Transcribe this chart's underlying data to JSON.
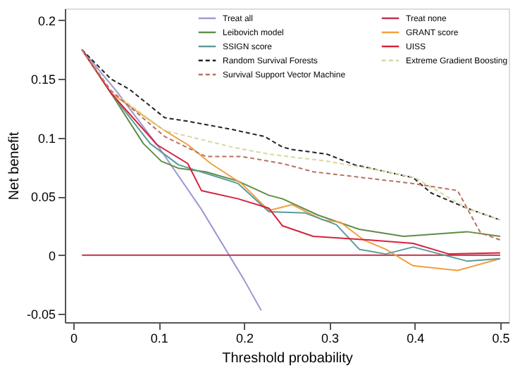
{
  "chart_data": {
    "type": "line",
    "xlabel": "Threshold probability",
    "ylabel": "Net benefit",
    "xlim": [
      -0.01,
      0.51
    ],
    "ylim": [
      -0.057,
      0.21
    ],
    "xticks": [
      0,
      0.1,
      0.2,
      0.3,
      0.4,
      0.5
    ],
    "yticks": [
      -0.05,
      0,
      0.05,
      0.1,
      0.15,
      0.2
    ],
    "grid": false,
    "legend": "top right",
    "line_style": "solid",
    "marker": "none",
    "series": [
      {
        "name": "Treat all",
        "color": "#9a9ad0",
        "x": [
          0.01,
          0.05,
          0.1,
          0.15,
          0.2,
          0.22
        ],
        "values": [
          0.175,
          0.14,
          0.092,
          0.039,
          -0.021,
          -0.047
        ]
      },
      {
        "name": "Treat none",
        "color": "#c0304a",
        "x": [
          0.01,
          0.5
        ],
        "values": [
          0,
          0
        ]
      },
      {
        "name": "Leibovich model",
        "color": "#5f8c45",
        "x": [
          0.01,
          0.044,
          0.082,
          0.103,
          0.123,
          0.155,
          0.193,
          0.229,
          0.245,
          0.287,
          0.335,
          0.387,
          0.461,
          0.5
        ],
        "values": [
          0.175,
          0.138,
          0.095,
          0.08,
          0.074,
          0.071,
          0.063,
          0.051,
          0.048,
          0.034,
          0.022,
          0.016,
          0.02,
          0.016
        ]
      },
      {
        "name": "GRANT score",
        "color": "#f0a040",
        "x": [
          0.01,
          0.044,
          0.107,
          0.134,
          0.161,
          0.197,
          0.229,
          0.256,
          0.292,
          0.313,
          0.34,
          0.366,
          0.398,
          0.45,
          0.5
        ],
        "values": [
          0.175,
          0.138,
          0.106,
          0.094,
          0.078,
          0.061,
          0.038,
          0.043,
          0.03,
          0.028,
          0.013,
          0.005,
          -0.009,
          -0.013,
          -0.003
        ]
      },
      {
        "name": "SSIGN score",
        "color": "#5a9a9a",
        "x": [
          0.01,
          0.044,
          0.09,
          0.123,
          0.193,
          0.229,
          0.271,
          0.308,
          0.335,
          0.366,
          0.398,
          0.461,
          0.5
        ],
        "values": [
          0.175,
          0.138,
          0.095,
          0.077,
          0.061,
          0.037,
          0.036,
          0.026,
          0.005,
          0.001,
          0.007,
          -0.005,
          -0.003
        ]
      },
      {
        "name": "UISS",
        "color": "#d8203c",
        "x": [
          0.01,
          0.044,
          0.098,
          0.134,
          0.15,
          0.193,
          0.229,
          0.245,
          0.281,
          0.345,
          0.398,
          0.44,
          0.5
        ],
        "values": [
          0.175,
          0.138,
          0.094,
          0.078,
          0.055,
          0.048,
          0.04,
          0.025,
          0.016,
          0.013,
          0.01,
          0.001,
          0.002
        ]
      },
      {
        "name": "Random Survival Forests",
        "color": "#222222",
        "line_style": "dashed",
        "x": [
          0.01,
          0.044,
          0.066,
          0.107,
          0.134,
          0.186,
          0.224,
          0.245,
          0.256,
          0.297,
          0.329,
          0.398,
          0.419,
          0.461,
          0.5
        ],
        "values": [
          0.175,
          0.15,
          0.141,
          0.117,
          0.114,
          0.107,
          0.101,
          0.092,
          0.09,
          0.086,
          0.077,
          0.066,
          0.053,
          0.04,
          0.03
        ]
      },
      {
        "name": "Extreme Gradient Boosting",
        "color": "#d8d8a0",
        "line_style": "dashed",
        "x": [
          0.01,
          0.044,
          0.107,
          0.186,
          0.229,
          0.297,
          0.36,
          0.4,
          0.461,
          0.5
        ],
        "values": [
          0.175,
          0.14,
          0.106,
          0.092,
          0.086,
          0.08,
          0.072,
          0.066,
          0.04,
          0.03
        ]
      },
      {
        "name": "Survival Support Vector Machine",
        "color": "#b87060",
        "line_style": "dashed",
        "x": [
          0.01,
          0.044,
          0.107,
          0.155,
          0.197,
          0.245,
          0.281,
          0.398,
          0.45,
          0.477,
          0.5
        ],
        "values": [
          0.175,
          0.14,
          0.101,
          0.084,
          0.084,
          0.078,
          0.071,
          0.061,
          0.055,
          0.019,
          0.013
        ]
      }
    ]
  }
}
